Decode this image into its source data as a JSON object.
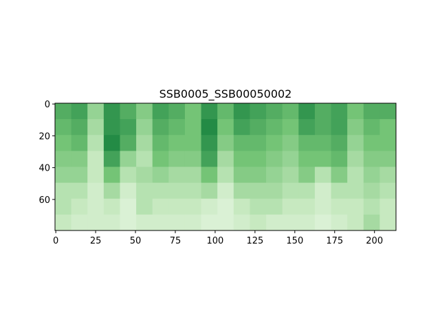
{
  "chart_data": {
    "type": "heatmap",
    "title": "SSB0005_SSB00050002",
    "colormap": "Greens",
    "xlim": [
      -0.5,
      213.5
    ],
    "ylim": [
      79.5,
      -0.5
    ],
    "xticks": [
      0,
      25,
      50,
      75,
      100,
      125,
      150,
      175,
      200
    ],
    "yticks": [
      0,
      20,
      40,
      60
    ],
    "z": [
      [
        0.6,
        0.65,
        0.4,
        0.7,
        0.6,
        0.45,
        0.65,
        0.6,
        0.5,
        0.7,
        0.55,
        0.7,
        0.65,
        0.6,
        0.55,
        0.7,
        0.6,
        0.65,
        0.5,
        0.6,
        0.6
      ],
      [
        0.55,
        0.6,
        0.35,
        0.7,
        0.65,
        0.4,
        0.6,
        0.55,
        0.5,
        0.75,
        0.5,
        0.65,
        0.6,
        0.55,
        0.5,
        0.65,
        0.6,
        0.65,
        0.45,
        0.55,
        0.5
      ],
      [
        0.5,
        0.55,
        0.3,
        0.75,
        0.6,
        0.35,
        0.55,
        0.5,
        0.5,
        0.7,
        0.45,
        0.55,
        0.55,
        0.5,
        0.45,
        0.55,
        0.55,
        0.6,
        0.4,
        0.5,
        0.5
      ],
      [
        0.45,
        0.45,
        0.25,
        0.65,
        0.4,
        0.3,
        0.5,
        0.45,
        0.45,
        0.65,
        0.35,
        0.5,
        0.5,
        0.45,
        0.4,
        0.5,
        0.5,
        0.55,
        0.35,
        0.45,
        0.45
      ],
      [
        0.4,
        0.4,
        0.25,
        0.5,
        0.3,
        0.35,
        0.4,
        0.35,
        0.35,
        0.5,
        0.3,
        0.45,
        0.45,
        0.4,
        0.35,
        0.45,
        0.3,
        0.45,
        0.3,
        0.4,
        0.35
      ],
      [
        0.3,
        0.3,
        0.2,
        0.35,
        0.2,
        0.3,
        0.3,
        0.3,
        0.3,
        0.35,
        0.2,
        0.35,
        0.35,
        0.35,
        0.3,
        0.3,
        0.2,
        0.3,
        0.3,
        0.35,
        0.3
      ],
      [
        0.3,
        0.25,
        0.2,
        0.25,
        0.15,
        0.3,
        0.25,
        0.25,
        0.25,
        0.2,
        0.15,
        0.25,
        0.3,
        0.3,
        0.25,
        0.25,
        0.2,
        0.25,
        0.25,
        0.3,
        0.25
      ],
      [
        0.25,
        0.2,
        0.2,
        0.2,
        0.15,
        0.2,
        0.2,
        0.2,
        0.2,
        0.15,
        0.15,
        0.2,
        0.25,
        0.2,
        0.2,
        0.2,
        0.15,
        0.2,
        0.25,
        0.35,
        0.25
      ]
    ]
  }
}
